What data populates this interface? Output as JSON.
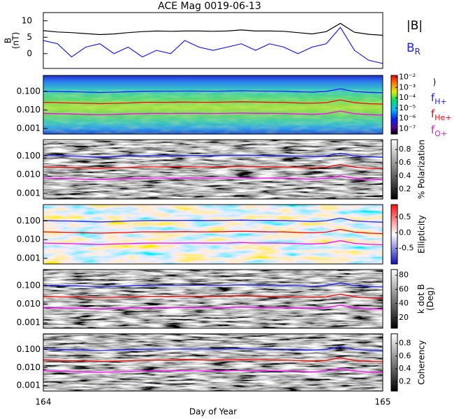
{
  "chart_data": {
    "type": "spectrogram-stack",
    "title": "ACE Mag 0019-06-13",
    "xlabel": "Day of Year",
    "xlim": [
      164,
      165
    ],
    "xticks": [
      164,
      165
    ],
    "x": [
      164,
      164.0417,
      164.0833,
      164.125,
      164.1667,
      164.2083,
      164.25,
      164.2917,
      164.3333,
      164.375,
      164.4167,
      164.4583,
      164.5,
      164.5417,
      164.5833,
      164.625,
      164.6667,
      164.7083,
      164.75,
      164.7917,
      164.8333,
      164.875,
      164.9167,
      164.9583,
      165
    ],
    "b_panel": {
      "ylabel": [
        "B",
        "(nT)"
      ],
      "ylim": [
        -4.5,
        12.5
      ],
      "yticks": [
        0,
        5,
        10
      ],
      "series": [
        {
          "name": "|B|",
          "color": "#000000",
          "values": [
            7,
            6.6,
            6.4,
            6.1,
            5.8,
            6,
            6.4,
            6.7,
            6.9,
            6.8,
            6.9,
            6.9,
            6.8,
            6.9,
            7.2,
            6.9,
            6.9,
            6.8,
            6.4,
            6,
            6.7,
            9.2,
            6.5,
            5.9,
            5.6
          ]
        },
        {
          "name": "B",
          "subscript": "R",
          "color": "#2020ff",
          "values": [
            4,
            3,
            -1,
            2,
            3,
            0,
            2,
            -1,
            1,
            0,
            4,
            2,
            1,
            2,
            3,
            1,
            3,
            2,
            0,
            2,
            3,
            8,
            1,
            -2,
            -3
          ]
        }
      ]
    },
    "gyro_series": [
      {
        "name": "f",
        "subscript": "H+",
        "color": "#2020ff",
        "values": [
          0.105,
          0.1,
          0.098,
          0.093,
          0.088,
          0.092,
          0.098,
          0.103,
          0.105,
          0.104,
          0.106,
          0.105,
          0.104,
          0.106,
          0.11,
          0.106,
          0.105,
          0.104,
          0.098,
          0.092,
          0.102,
          0.14,
          0.1,
          0.09,
          0.085
        ]
      },
      {
        "name": "f",
        "subscript": "He+",
        "color": "#ff0000",
        "values": [
          0.026,
          0.025,
          0.024,
          0.023,
          0.022,
          0.023,
          0.024,
          0.026,
          0.026,
          0.026,
          0.027,
          0.026,
          0.026,
          0.027,
          0.028,
          0.027,
          0.026,
          0.026,
          0.024,
          0.023,
          0.025,
          0.035,
          0.025,
          0.022,
          0.021
        ]
      },
      {
        "name": "f",
        "subscript": "O+",
        "color": "#ff00ff",
        "values": [
          0.0066,
          0.0063,
          0.0061,
          0.0058,
          0.0055,
          0.0058,
          0.0061,
          0.0064,
          0.0066,
          0.0065,
          0.0066,
          0.0066,
          0.0065,
          0.0066,
          0.0069,
          0.0066,
          0.0066,
          0.0065,
          0.0061,
          0.0058,
          0.0064,
          0.0088,
          0.0063,
          0.0056,
          0.0053
        ]
      }
    ],
    "log_y": true,
    "panels": [
      {
        "ylim": [
          0.0005,
          0.74
        ],
        "yticks": [
          {
            "value": 0.1,
            "label": "0.100"
          },
          {
            "value": 0.01,
            "label": "0.010"
          },
          {
            "value": 0.001,
            "label": "0.001"
          }
        ],
        "colorbar": {
          "log": true,
          "lim": [
            3e-08,
            0.015
          ],
          "ticks": [
            {
              "value": 0.01,
              "label": "10⁻²"
            },
            {
              "value": 0.001,
              "label": "10⁻³"
            },
            {
              "value": 0.0001,
              "label": "10⁻⁴"
            },
            {
              "value": 1e-05,
              "label": "10⁻⁵"
            },
            {
              "value": 1e-06,
              "label": "10⁻⁶"
            },
            {
              "value": 1e-07,
              "label": "10⁻⁷"
            }
          ],
          "label": [
            ")"
          ]
        }
      },
      {
        "ylim": [
          0.0005,
          0.74
        ],
        "yticks": [
          {
            "value": 0.1,
            "label": "0.100"
          },
          {
            "value": 0.01,
            "label": "0.010"
          },
          {
            "value": 0.001,
            "label": "0.001"
          }
        ],
        "colorbar": {
          "lim": [
            0.05,
            0.95
          ],
          "ticks": [
            0.8,
            0.6,
            0.4,
            0.2
          ],
          "label": [
            "% Polarization"
          ]
        }
      },
      {
        "ylim": [
          0.0005,
          0.74
        ],
        "yticks": [
          {
            "value": 0.1,
            "label": "0.100"
          },
          {
            "value": 0.01,
            "label": "0.010"
          },
          {
            "value": 0.001,
            "label": "0.001"
          }
        ],
        "colorbar": {
          "lim": [
            -1,
            0.9
          ],
          "ticks": [
            0.5,
            {
              "value": 0,
              "label": "0.0"
            },
            -0.5
          ],
          "label": [
            "Ellipticity"
          ]
        }
      },
      {
        "ylim": [
          0.0005,
          0.74
        ],
        "yticks": [
          {
            "value": 0.1,
            "label": "0.100"
          },
          {
            "value": 0.01,
            "label": "0.010"
          },
          {
            "value": 0.001,
            "label": "0.001"
          }
        ],
        "colorbar": {
          "lim": [
            5,
            88
          ],
          "ticks": [
            80,
            60,
            40,
            20
          ],
          "label": [
            "k dot B",
            "(Deg)"
          ]
        }
      },
      {
        "ylim": [
          0.0005,
          0.74
        ],
        "yticks": [
          {
            "value": 0.1,
            "label": "0.100"
          },
          {
            "value": 0.01,
            "label": "0.010"
          },
          {
            "value": 0.001,
            "label": "0.001"
          }
        ],
        "colorbar": {
          "lim": [
            0.05,
            0.95
          ],
          "ticks": [
            0.8,
            0.6,
            0.4,
            0.2
          ],
          "label": [
            "Coherency"
          ]
        }
      }
    ]
  }
}
